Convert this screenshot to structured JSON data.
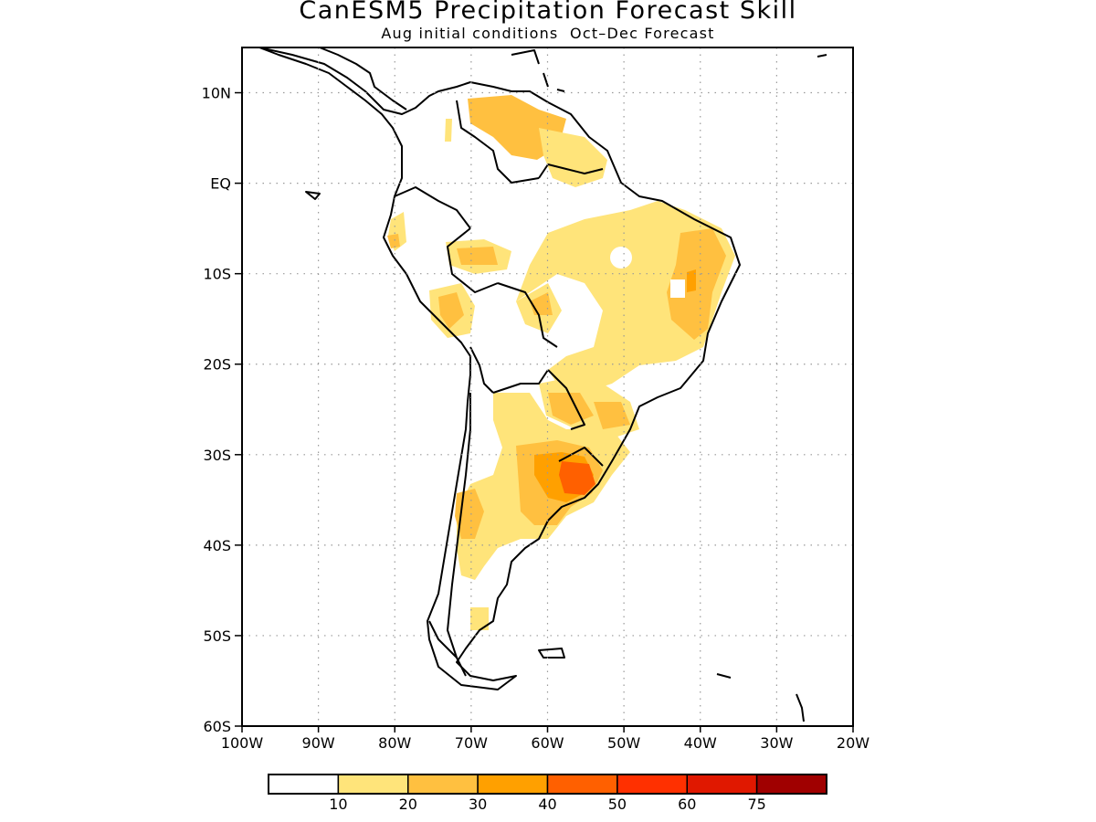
{
  "title": "CanESM5 Precipitation Forecast Skill",
  "subtitle": "Aug initial conditions  Oct–Dec Forecast",
  "map": {
    "region": "South America",
    "lon_range": [
      -100,
      -20
    ],
    "lat_range": [
      -60,
      15
    ],
    "grid": "dotted",
    "lat_ticks": [
      "10N",
      "EQ",
      "10S",
      "20S",
      "30S",
      "40S",
      "50S",
      "60S"
    ],
    "lon_ticks": [
      "100W",
      "90W",
      "80W",
      "70W",
      "60W",
      "50W",
      "40W",
      "30W",
      "20W"
    ]
  },
  "colorbar": {
    "colors": [
      "#ffffff",
      "#ffe47a",
      "#ffc040",
      "#ffa000",
      "#ff6000",
      "#ff3000",
      "#e01800",
      "#a00000"
    ],
    "labels": [
      "10",
      "20",
      "30",
      "40",
      "50",
      "60",
      "75"
    ]
  }
}
